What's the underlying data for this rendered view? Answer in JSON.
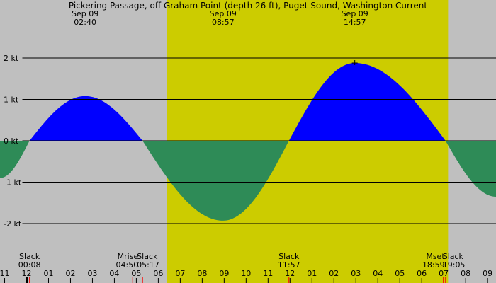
{
  "chart_data": {
    "type": "area",
    "title": "Pickering Passage, off Graham Point (depth 26 ft), Puget Sound, Washington Current",
    "ylim": [
      -3.4,
      3.4
    ],
    "y_ticks": [
      {
        "value": 2,
        "label": "2 kt"
      },
      {
        "value": 1,
        "label": "1 kt"
      },
      {
        "value": 0,
        "label": "0 kt"
      },
      {
        "value": -1,
        "label": "-1 kt"
      },
      {
        "value": -2,
        "label": "-2 kt"
      }
    ],
    "x_unit": "hours from midnight, Sep 09",
    "xlim": [
      -1.217,
      21.383
    ],
    "daylight": {
      "start": 6.4,
      "end": 19.2
    },
    "colors": {
      "flood": "#0000ff",
      "ebb": "#2e8b57",
      "day": "#cccc00",
      "night": "#bfbfbf",
      "grid": "#000000",
      "moon_marker": "#ff0000"
    },
    "events": [
      {
        "type": "slack",
        "time": 0.133
      },
      {
        "type": "max",
        "time": 2.667,
        "value": 1.08
      },
      {
        "type": "slack",
        "time": 5.283
      },
      {
        "type": "min",
        "time": 8.95,
        "value": -1.93
      },
      {
        "type": "slack",
        "time": 11.95
      },
      {
        "type": "max",
        "time": 14.95,
        "value": 1.88
      },
      {
        "type": "slack",
        "time": 19.083
      }
    ],
    "curve_extension": {
      "start": {
        "time": -1.217,
        "value": -0.9
      },
      "end": {
        "time": 21.383,
        "value": -1.35
      }
    },
    "header_labels": [
      {
        "date": "Sep 09",
        "time": "02:40",
        "hour": 2.667
      },
      {
        "date": "Sep 09",
        "time": "08:57",
        "hour": 8.95
      },
      {
        "date": "Sep 09",
        "time": "14:57",
        "hour": 14.95
      }
    ],
    "bottom_labels": [
      {
        "text": "Slack",
        "time": "00:08",
        "hour": 0.133
      },
      {
        "text": "Mrise",
        "time": "04:50",
        "hour": 4.833
      },
      {
        "text": "Slack",
        "time": "05:17",
        "hour": 5.283
      },
      {
        "text": "Slack",
        "time": "11:57",
        "hour": 11.95
      },
      {
        "text": "Mset",
        "time": "18:59",
        "hour": 18.983
      },
      {
        "text": "Slack",
        "time": "19:05",
        "hour": 19.083
      }
    ],
    "hour_ticks": [
      {
        "hour": -1,
        "label": "11"
      },
      {
        "hour": 0,
        "label": "12"
      },
      {
        "hour": 1,
        "label": "01"
      },
      {
        "hour": 2,
        "label": "02"
      },
      {
        "hour": 3,
        "label": "03"
      },
      {
        "hour": 4,
        "label": "04"
      },
      {
        "hour": 5,
        "label": "05"
      },
      {
        "hour": 6,
        "label": "06"
      },
      {
        "hour": 7,
        "label": "07"
      },
      {
        "hour": 8,
        "label": "08"
      },
      {
        "hour": 9,
        "label": "09"
      },
      {
        "hour": 10,
        "label": "10"
      },
      {
        "hour": 11,
        "label": "11"
      },
      {
        "hour": 12,
        "label": "12"
      },
      {
        "hour": 13,
        "label": "01"
      },
      {
        "hour": 14,
        "label": "02"
      },
      {
        "hour": 15,
        "label": "03"
      },
      {
        "hour": 16,
        "label": "04"
      },
      {
        "hour": 17,
        "label": "05"
      },
      {
        "hour": 18,
        "label": "06"
      },
      {
        "hour": 19,
        "label": "07"
      },
      {
        "hour": 20,
        "label": "08"
      },
      {
        "hour": 21,
        "label": "09"
      }
    ],
    "marker_ticks": [
      {
        "hour": 0,
        "kind": "midnight"
      },
      {
        "hour": 0.133,
        "kind": "slack"
      },
      {
        "hour": 4.833,
        "kind": "moonrise"
      },
      {
        "hour": 5.283,
        "kind": "slack"
      },
      {
        "hour": 11.95,
        "kind": "slack"
      },
      {
        "hour": 18.983,
        "kind": "moonset"
      },
      {
        "hour": 19.083,
        "kind": "slack"
      }
    ],
    "peak_marker": {
      "hour": 14.95,
      "value": 1.88
    }
  }
}
